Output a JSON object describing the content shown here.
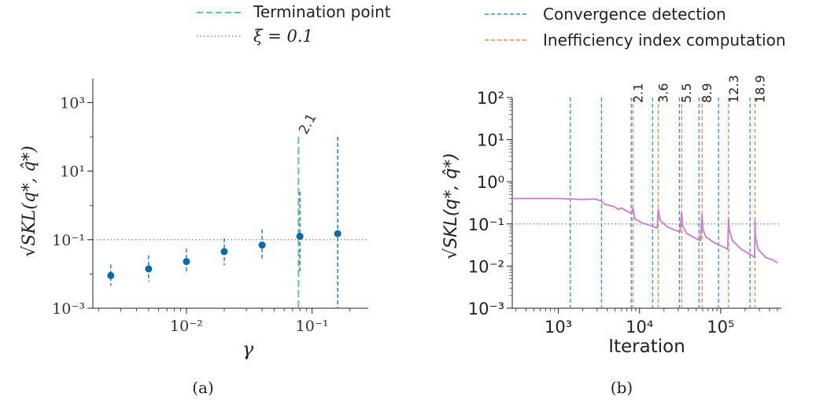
{
  "colors": {
    "termination": "#66c2a5",
    "threshold": "#888888",
    "convergence": "#3a8fc6",
    "inefficiency": "#e0874b",
    "points": "#0a6aa8",
    "errbar": "#2a7fc0",
    "curve": "#c97dc9",
    "axis": "#222222"
  },
  "legend_a": [
    {
      "label": "Termination point",
      "style": "dashed",
      "color": "#66c2a5"
    },
    {
      "label": "ξ = 0.1",
      "style": "dotted",
      "color": "#888888"
    }
  ],
  "legend_b": [
    {
      "label": "Convergence detection",
      "style": "dashed",
      "color": "#3a8fc6"
    },
    {
      "label": "Inefficiency index computation",
      "style": "dashed",
      "color": "#e0874b"
    }
  ],
  "chart_data": [
    {
      "panel": "a",
      "caption": "(a)",
      "type": "scatter",
      "xscale": "log",
      "yscale": "log",
      "xlabel": "γ",
      "ylabel": "√SKL(q*, q̂*)",
      "xlim": [
        0.0018,
        0.28
      ],
      "ylim": [
        0.001,
        5000
      ],
      "xticks": [
        {
          "value": 0.01,
          "label": "10⁻²"
        },
        {
          "value": 0.1,
          "label": "10⁻¹"
        }
      ],
      "yticks": [
        {
          "value": 0.001,
          "label": "10⁻³"
        },
        {
          "value": 0.1,
          "label": "10⁻¹"
        },
        {
          "value": 10,
          "label": "10¹"
        },
        {
          "value": 1000,
          "label": "10³"
        }
      ],
      "points": [
        {
          "x": 0.0025,
          "y": 0.009,
          "lo": 0.0045,
          "hi": 0.019
        },
        {
          "x": 0.005,
          "y": 0.014,
          "lo": 0.006,
          "hi": 0.035
        },
        {
          "x": 0.01,
          "y": 0.023,
          "lo": 0.01,
          "hi": 0.055
        },
        {
          "x": 0.02,
          "y": 0.045,
          "lo": 0.018,
          "hi": 0.11
        },
        {
          "x": 0.04,
          "y": 0.07,
          "lo": 0.028,
          "hi": 0.2
        },
        {
          "x": 0.08,
          "y": 0.125,
          "lo": 0.012,
          "hi": 2.5
        },
        {
          "x": 0.16,
          "y": 0.15,
          "lo": 0.001,
          "hi": 100
        }
      ],
      "termination_x": 0.078,
      "termination_top": 100,
      "termination_label": "2.1",
      "threshold_y": 0.1
    },
    {
      "panel": "b",
      "caption": "(b)",
      "type": "line",
      "xscale": "log",
      "yscale": "log",
      "xlabel": "Iteration",
      "ylabel": "√SKL(q*, q̂*)",
      "xlim": [
        270,
        560000
      ],
      "ylim": [
        0.001,
        100
      ],
      "xticks": [
        {
          "value": 1000,
          "label": "10³"
        },
        {
          "value": 10000,
          "label": "10⁴"
        },
        {
          "value": 100000,
          "label": "10⁵"
        }
      ],
      "yticks": [
        {
          "value": 0.001,
          "label": "10⁻³"
        },
        {
          "value": 0.01,
          "label": "10⁻²"
        },
        {
          "value": 0.1,
          "label": "10⁻¹"
        },
        {
          "value": 1,
          "label": "10⁰"
        },
        {
          "value": 10,
          "label": "10¹"
        },
        {
          "value": 100,
          "label": "10²"
        }
      ],
      "threshold_y": 0.1,
      "convergence_x": [
        1400,
        3400,
        7900,
        14500,
        31000,
        54000,
        94000,
        230000
      ],
      "inefficiency": [
        {
          "x": 8300,
          "label": "2.1"
        },
        {
          "x": 17000,
          "label": "3.6"
        },
        {
          "x": 33000,
          "label": "5.5"
        },
        {
          "x": 59000,
          "label": "8.9"
        },
        {
          "x": 125000,
          "label": "12.3"
        },
        {
          "x": 265000,
          "label": "18.9"
        }
      ],
      "series": [
        {
          "x": [
            270,
            1000,
            2000,
            2800,
            3400,
            3600,
            4800,
            5500,
            6000,
            7000,
            7900,
            8300,
            8800,
            11000,
            14000,
            16500,
            17000,
            18000,
            22000,
            28000,
            31500,
            33000,
            34000,
            38000,
            50000,
            56000,
            59000,
            60000,
            65000,
            85000,
            110000,
            122000,
            125000,
            128000,
            140000,
            180000,
            240000,
            262000,
            265000,
            268000,
            290000,
            360000,
            440000,
            500000
          ],
          "y": [
            0.4,
            0.4,
            0.38,
            0.39,
            0.35,
            0.3,
            0.26,
            0.22,
            0.24,
            0.2,
            0.18,
            0.24,
            0.13,
            0.105,
            0.09,
            0.08,
            0.22,
            0.12,
            0.085,
            0.07,
            0.065,
            0.19,
            0.09,
            0.06,
            0.045,
            0.04,
            0.17,
            0.08,
            0.05,
            0.035,
            0.028,
            0.025,
            0.14,
            0.07,
            0.04,
            0.025,
            0.018,
            0.016,
            0.12,
            0.05,
            0.025,
            0.016,
            0.014,
            0.012
          ]
        }
      ]
    }
  ]
}
